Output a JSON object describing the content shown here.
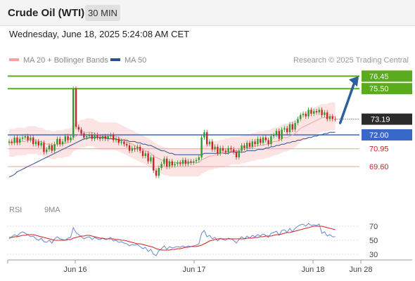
{
  "header": {
    "title": "Crude Oil (WTI)",
    "timeframe": "30 MIN"
  },
  "datetime": "Wednesday, June 18, 2025 5:24:08 AM CET",
  "legend": {
    "bb_label": "MA 20 + Bollinger Bands",
    "ma50_label": "MA 50",
    "copyright": "Research © 2025 Trading Central"
  },
  "rsi_legend": {
    "rsi_label": "RSI",
    "ma_label": "9MA"
  },
  "colors": {
    "up_candle": "#2e9c2e",
    "down_candle": "#c62828",
    "bollinger_fill": "#fde4e4",
    "ma20": "#f4a3a3",
    "ma50": "#2d4f8e",
    "resistance": "#5aab1e",
    "pivot": "#3a68c8",
    "support": "#f1a0a0",
    "arrow": "#2f5e9e",
    "rsi": "#6a87d8",
    "rsi_ma": "#d62020"
  },
  "chart_data": [
    {
      "type": "candlestick",
      "x_ticks": [
        "Jun 16",
        "Jun 17",
        "Jun 18",
        "Jun 28"
      ],
      "ylim": [
        67.0,
        77.0
      ],
      "current_price": 73.19,
      "levels": [
        {
          "value": 76.45,
          "label": "76.45",
          "kind": "resistance"
        },
        {
          "value": 75.5,
          "label": "75.50",
          "kind": "resistance"
        },
        {
          "value": 72.0,
          "label": "72.00",
          "kind": "pivot"
        },
        {
          "value": 70.95,
          "label": "70.95",
          "kind": "support"
        },
        {
          "value": 69.6,
          "label": "69.60",
          "kind": "support"
        }
      ],
      "target_arrow": {
        "from": 72.9,
        "to": 76.35
      },
      "close": [
        71.5,
        71.4,
        71.8,
        71.4,
        71.7,
        71.8,
        71.9,
        71.6,
        71.8,
        71.3,
        71.5,
        71.2,
        71.4,
        70.7,
        70.9,
        71.2,
        70.8,
        71.3,
        71.7,
        71.3,
        71.5,
        71.9,
        71.6,
        71.8,
        75.5,
        72.6,
        72.4,
        72.1,
        71.8,
        71.9,
        72.0,
        71.7,
        72.0,
        71.8,
        71.7,
        71.9,
        71.7,
        71.9,
        72.0,
        71.6,
        71.7,
        71.4,
        71.5,
        71.3,
        71.2,
        70.8,
        71.0,
        70.9,
        71.1,
        70.8,
        70.4,
        70.6,
        70.0,
        70.3,
        69.3,
        68.9,
        69.5,
        69.8,
        70.2,
        69.6,
        70.0,
        69.7,
        69.8,
        69.9,
        69.8,
        70.1,
        69.8,
        70.0,
        69.9,
        70.0,
        70.1,
        70.3,
        71.8,
        72.2,
        71.3,
        71.5,
        70.9,
        71.1,
        70.6,
        71.0,
        70.8,
        70.7,
        71.0,
        70.9,
        70.7,
        70.3,
        70.8,
        71.2,
        71.0,
        71.4,
        71.1,
        71.5,
        71.3,
        71.7,
        71.4,
        71.8,
        71.6,
        71.3,
        71.9,
        72.0,
        72.3,
        71.7,
        72.4,
        72.5,
        72.2,
        72.8,
        72.4,
        72.9,
        73.2,
        73.5,
        73.6,
        73.4,
        73.9,
        73.6,
        73.8,
        73.7,
        73.9,
        73.5,
        73.7,
        73.2,
        73.4,
        73.2,
        73.19
      ],
      "ma20": [
        71.4,
        71.4,
        71.4,
        71.5,
        71.5,
        71.5,
        71.5,
        71.6,
        71.6,
        71.6,
        71.6,
        71.5,
        71.5,
        71.4,
        71.3,
        71.3,
        71.2,
        71.2,
        71.3,
        71.3,
        71.3,
        71.4,
        71.4,
        71.5,
        71.8,
        71.9,
        72.0,
        72.1,
        72.1,
        72.2,
        72.2,
        72.2,
        72.1,
        72.0,
        71.9,
        71.9,
        71.9,
        71.9,
        71.9,
        71.9,
        71.9,
        71.8,
        71.7,
        71.6,
        71.5,
        71.4,
        71.3,
        71.2,
        71.1,
        71.0,
        70.9,
        70.8,
        70.7,
        70.6,
        70.4,
        70.3,
        70.2,
        70.1,
        70.0,
        70.0,
        69.9,
        69.9,
        69.9,
        69.9,
        69.9,
        69.9,
        69.9,
        69.9,
        69.9,
        69.9,
        69.9,
        69.9,
        70.1,
        70.2,
        70.3,
        70.4,
        70.4,
        70.5,
        70.5,
        70.6,
        70.6,
        70.7,
        70.7,
        70.8,
        70.8,
        70.8,
        70.8,
        70.9,
        70.9,
        71.0,
        71.0,
        71.1,
        71.1,
        71.2,
        71.2,
        71.2,
        71.3,
        71.3,
        71.4,
        71.5,
        71.5,
        71.6,
        71.7,
        71.8,
        71.8,
        71.9,
        72.0,
        72.1,
        72.3,
        72.5,
        72.6,
        72.7,
        72.8,
        72.9,
        73.0,
        73.1,
        73.2,
        73.3,
        73.3,
        73.3,
        73.4,
        73.4,
        73.4
      ],
      "ma50": [
        68.8,
        68.9,
        69.0,
        69.2,
        69.3,
        69.4,
        69.5,
        69.6,
        69.7,
        69.8,
        69.9,
        70.0,
        70.1,
        70.2,
        70.3,
        70.4,
        70.5,
        70.6,
        70.7,
        70.8,
        70.9,
        71.0,
        71.1,
        71.2,
        71.3,
        71.4,
        71.5,
        71.6,
        71.7,
        71.7,
        71.8,
        71.8,
        71.8,
        71.8,
        71.8,
        71.8,
        71.8,
        71.7,
        71.7,
        71.7,
        71.7,
        71.6,
        71.6,
        71.6,
        71.6,
        71.5,
        71.5,
        71.5,
        71.4,
        71.4,
        71.3,
        71.3,
        71.2,
        71.2,
        71.1,
        71.0,
        70.9,
        70.8,
        70.8,
        70.7,
        70.6,
        70.6,
        70.5,
        70.5,
        70.5,
        70.5,
        70.5,
        70.5,
        70.5,
        70.5,
        70.5,
        70.5,
        70.5,
        70.6,
        70.6,
        70.6,
        70.6,
        70.6,
        70.6,
        70.6,
        70.6,
        70.6,
        70.6,
        70.7,
        70.7,
        70.7,
        70.7,
        70.7,
        70.7,
        70.8,
        70.8,
        70.8,
        70.8,
        70.9,
        70.9,
        70.9,
        71.0,
        71.0,
        71.1,
        71.1,
        71.2,
        71.2,
        71.3,
        71.3,
        71.4,
        71.4,
        71.5,
        71.5,
        71.6,
        71.6,
        71.7,
        71.7,
        71.8,
        71.8,
        71.9,
        71.9,
        72.0,
        72.0,
        72.1,
        72.1,
        72.2,
        72.2,
        72.2
      ]
    },
    {
      "type": "line",
      "indicator": "RSI",
      "y_ticks": [
        70,
        50,
        30
      ],
      "ylim": [
        20,
        80
      ],
      "rsi": [
        52,
        55,
        58,
        56,
        60,
        62,
        60,
        58,
        55,
        56,
        52,
        50,
        53,
        48,
        47,
        50,
        46,
        52,
        55,
        52,
        51,
        50,
        53,
        54,
        68,
        61,
        58,
        55,
        52,
        54,
        55,
        51,
        54,
        52,
        51,
        53,
        51,
        52,
        54,
        49,
        50,
        47,
        48,
        46,
        45,
        42,
        44,
        43,
        44,
        41,
        38,
        40,
        34,
        37,
        30,
        28,
        35,
        38,
        42,
        37,
        41,
        39,
        40,
        41,
        40,
        42,
        40,
        42,
        41,
        42,
        43,
        45,
        60,
        64,
        55,
        57,
        52,
        54,
        49,
        53,
        51,
        50,
        53,
        52,
        50,
        46,
        51,
        55,
        52,
        56,
        53,
        57,
        55,
        58,
        56,
        59,
        57,
        54,
        60,
        61,
        63,
        57,
        64,
        65,
        61,
        67,
        62,
        67,
        70,
        72,
        73,
        70,
        74,
        71,
        72,
        71,
        73,
        60,
        62,
        56,
        58,
        55,
        55
      ],
      "ma9": [
        54,
        54,
        55,
        55,
        56,
        57,
        57,
        58,
        58,
        58,
        57,
        56,
        55,
        54,
        53,
        52,
        51,
        50,
        50,
        50,
        50,
        50,
        51,
        51,
        53,
        54,
        55,
        56,
        56,
        57,
        57,
        56,
        55,
        54,
        53,
        53,
        52,
        52,
        52,
        52,
        51,
        51,
        50,
        50,
        49,
        48,
        47,
        46,
        45,
        45,
        44,
        43,
        42,
        41,
        40,
        38,
        37,
        36,
        36,
        36,
        36,
        37,
        37,
        38,
        38,
        39,
        40,
        40,
        41,
        41,
        41,
        42,
        43,
        45,
        47,
        49,
        50,
        51,
        52,
        52,
        52,
        52,
        52,
        52,
        52,
        52,
        52,
        52,
        52,
        53,
        53,
        53,
        54,
        54,
        55,
        55,
        56,
        56,
        56,
        57,
        58,
        58,
        59,
        60,
        61,
        61,
        62,
        63,
        64,
        65,
        66,
        67,
        68,
        69,
        70,
        70,
        70,
        70,
        69,
        68,
        67,
        66,
        65
      ]
    }
  ]
}
